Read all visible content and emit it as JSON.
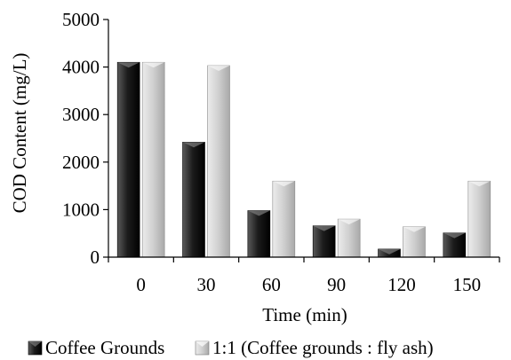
{
  "chart_data": {
    "type": "bar",
    "title": "",
    "xlabel": "Time (min)",
    "ylabel": "COD Content (mg/L)",
    "categories": [
      "0",
      "30",
      "60",
      "90",
      "120",
      "150"
    ],
    "ylim": [
      0,
      5000
    ],
    "yticks": [
      "0",
      "1000",
      "2000",
      "3000",
      "4000",
      "5000"
    ],
    "grid": false,
    "legend_position": "bottom",
    "series": [
      {
        "name": "Coffee Grounds",
        "values": [
          4100,
          2420,
          980,
          660,
          170,
          510
        ],
        "color": "#1a1a1a",
        "style": "dark-gradient"
      },
      {
        "name": "1:1 (Coffee grounds : fly ash)",
        "values": [
          4100,
          4030,
          1600,
          800,
          640,
          1600
        ],
        "color": "#c8c8c8",
        "style": "light-gradient"
      }
    ]
  }
}
